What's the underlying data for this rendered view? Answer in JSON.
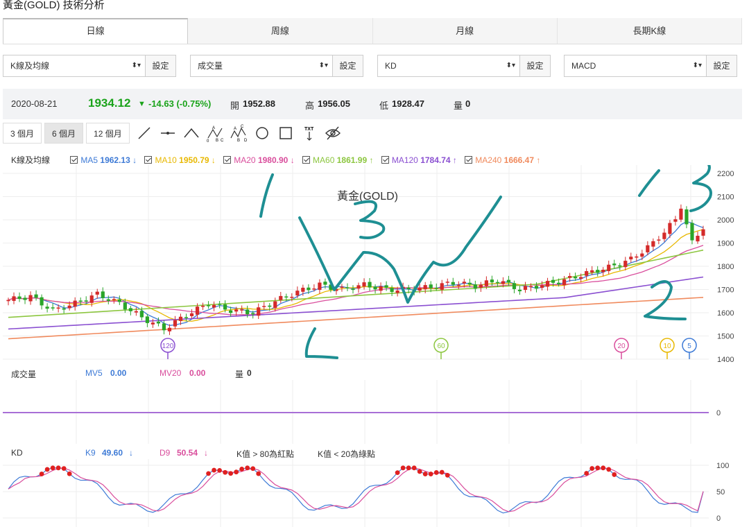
{
  "page_title": "黃金(GOLD) 技術分析",
  "tabs": [
    {
      "label": "日線",
      "active": true
    },
    {
      "label": "周線",
      "active": false
    },
    {
      "label": "月線",
      "active": false
    },
    {
      "label": "長期K線",
      "active": false
    }
  ],
  "selectors": [
    {
      "value": "K線及均線",
      "button": "設定"
    },
    {
      "value": "成交量",
      "button": "設定"
    },
    {
      "value": "KD",
      "button": "設定"
    },
    {
      "value": "MACD",
      "button": "設定"
    }
  ],
  "quote": {
    "date": "2020-08-21",
    "price": "1934.12",
    "change": "-14.63 (-0.75%)",
    "open_label": "開",
    "open": "1952.88",
    "high_label": "高",
    "high": "1956.05",
    "low_label": "低",
    "low": "1928.47",
    "vol_label": "量",
    "vol": "0"
  },
  "ranges": [
    {
      "label": "3 個月",
      "active": false
    },
    {
      "label": "6 個月",
      "active": true
    },
    {
      "label": "12 個月",
      "active": false
    }
  ],
  "tools": [
    "line-tool-icon",
    "horizontal-line-icon",
    "angle-icon",
    "abc-pattern-icon",
    "abcd-pattern-icon",
    "circle-icon",
    "rectangle-icon",
    "text-tool-icon",
    "hide-eye-icon"
  ],
  "ma_legend": {
    "label": "K線及均線",
    "items": [
      {
        "name": "MA5",
        "value": "1962.13",
        "arrow": "↓",
        "color": "#3d7ad6"
      },
      {
        "name": "MA10",
        "value": "1950.79",
        "arrow": "↓",
        "color": "#e8b800"
      },
      {
        "name": "MA20",
        "value": "1980.90",
        "arrow": "↓",
        "color": "#d94d9c"
      },
      {
        "name": "MA60",
        "value": "1861.99",
        "arrow": "↑",
        "color": "#8cc63f"
      },
      {
        "name": "MA120",
        "value": "1784.74",
        "arrow": "↑",
        "color": "#8a4fd1"
      },
      {
        "name": "MA240",
        "value": "1666.47",
        "arrow": "↑",
        "color": "#f08a5d"
      }
    ]
  },
  "main_chart": {
    "title": "黃金(GOLD)",
    "y_ticks": [
      "2200",
      "2100",
      "2000",
      "1900",
      "1800",
      "1700",
      "1600",
      "1500",
      "1400"
    ],
    "markers": [
      {
        "label": "120",
        "color": "#8a4fd1"
      },
      {
        "label": "60",
        "color": "#8cc63f"
      },
      {
        "label": "20",
        "color": "#d94d9c"
      },
      {
        "label": "10",
        "color": "#e8b800"
      },
      {
        "label": "5",
        "color": "#3d7ad6"
      }
    ],
    "annotations": [
      "1",
      "3",
      "1",
      "3",
      "2",
      "2"
    ],
    "ink_color": "#1e8f93"
  },
  "volume_panel": {
    "label": "成交量",
    "mv5_label": "MV5",
    "mv5": "0.00",
    "mv20_label": "MV20",
    "mv20": "0.00",
    "vol_label": "量",
    "vol": "0",
    "y_tick": "0"
  },
  "kd_panel": {
    "label": "KD",
    "k_label": "K9",
    "k": "49.60",
    "k_arrow": "↓",
    "d_label": "D9",
    "d": "50.54",
    "d_arrow": "↓",
    "note_red": "K值 > 80為紅點",
    "note_green": "K值 < 20為綠點",
    "y_ticks": [
      "100",
      "50",
      "0"
    ]
  },
  "colors": {
    "up": "#d42a2a",
    "down": "#2aa52a",
    "accent_green": "#1aa31a"
  }
}
